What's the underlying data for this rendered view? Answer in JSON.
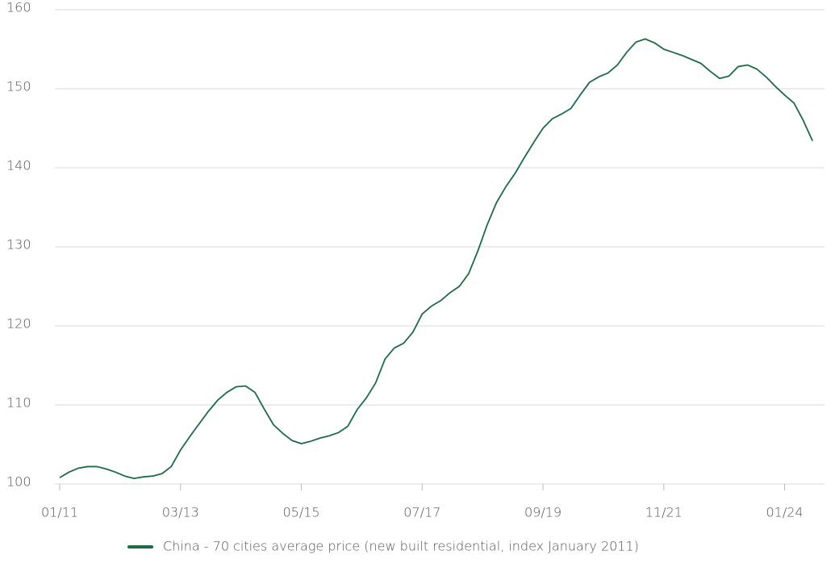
{
  "chart_data": {
    "type": "line",
    "categories": [
      "01/11",
      null,
      null,
      null,
      null,
      null,
      null,
      null,
      null,
      null,
      null,
      null,
      null,
      "03/13",
      null,
      null,
      null,
      null,
      null,
      null,
      null,
      null,
      null,
      null,
      null,
      null,
      "05/15",
      null,
      null,
      null,
      null,
      null,
      null,
      null,
      null,
      null,
      null,
      null,
      null,
      "07/17",
      null,
      null,
      null,
      null,
      null,
      null,
      null,
      null,
      null,
      null,
      null,
      null,
      "09/19",
      null,
      null,
      null,
      null,
      null,
      null,
      null,
      null,
      null,
      null,
      null,
      null,
      "11/21",
      null,
      null,
      null,
      null,
      null,
      null,
      null,
      null,
      null,
      null,
      null,
      null,
      "01/24",
      null,
      null,
      null
    ],
    "series": [
      {
        "name": "China - 70 cities average price (new built residential, index January 2011)",
        "color": "#1f6b45",
        "values": [
          100.8,
          101.5,
          102.0,
          102.2,
          102.2,
          101.9,
          101.5,
          101.0,
          100.7,
          100.9,
          101.0,
          101.3,
          102.2,
          104.3,
          106.0,
          107.6,
          109.2,
          110.6,
          111.6,
          112.3,
          112.4,
          111.6,
          109.5,
          107.5,
          106.4,
          105.5,
          105.1,
          105.4,
          105.8,
          106.1,
          106.5,
          107.3,
          109.4,
          110.9,
          112.8,
          115.8,
          117.2,
          117.8,
          119.2,
          121.5,
          122.5,
          123.2,
          124.2,
          125.0,
          126.6,
          129.5,
          132.8,
          135.6,
          137.6,
          139.3,
          141.3,
          143.2,
          145.0,
          146.2,
          146.8,
          147.5,
          149.2,
          150.8,
          151.5,
          152.0,
          153.0,
          154.6,
          155.9,
          156.3,
          155.8,
          155.0,
          154.6,
          154.2,
          153.7,
          153.2,
          152.2,
          151.3,
          151.6,
          152.8,
          153.0,
          152.5,
          151.5,
          150.3,
          149.2,
          148.2,
          146.0,
          143.4
        ]
      }
    ],
    "ylim": [
      100,
      160
    ],
    "yticks": [
      100,
      110,
      120,
      130,
      140,
      150,
      160
    ],
    "grid": true,
    "legend": "bottom"
  }
}
